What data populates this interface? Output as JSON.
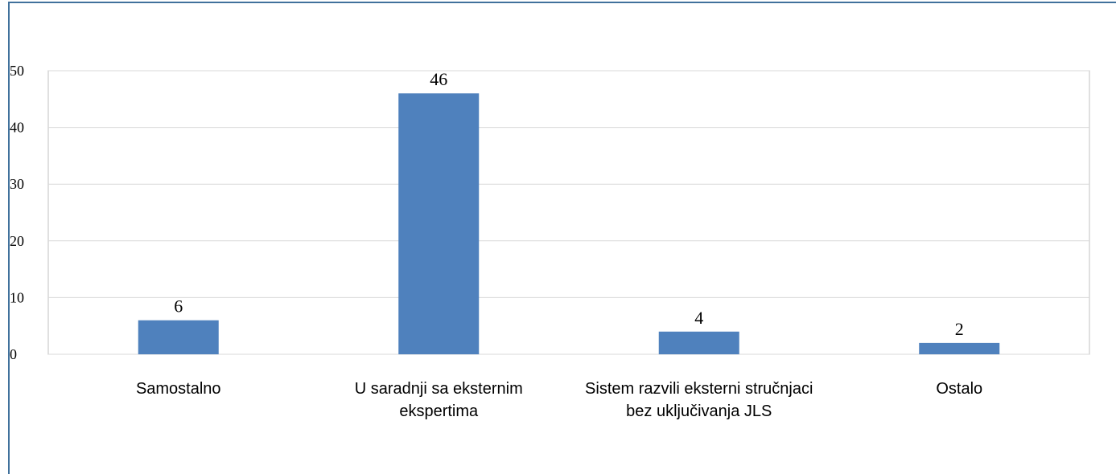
{
  "chart_data": {
    "type": "bar",
    "categories": [
      "Samostalno",
      "U saradnji sa eksternim ekspertima",
      "Sistem razvili eksterni stručnjaci bez uključivanja JLS",
      "Ostalo"
    ],
    "values": [
      6,
      46,
      4,
      2
    ],
    "color": "#4f81bd",
    "ylim": [
      0,
      50
    ],
    "yticks": [
      0,
      10,
      20,
      30,
      40,
      50
    ],
    "grid": true
  }
}
